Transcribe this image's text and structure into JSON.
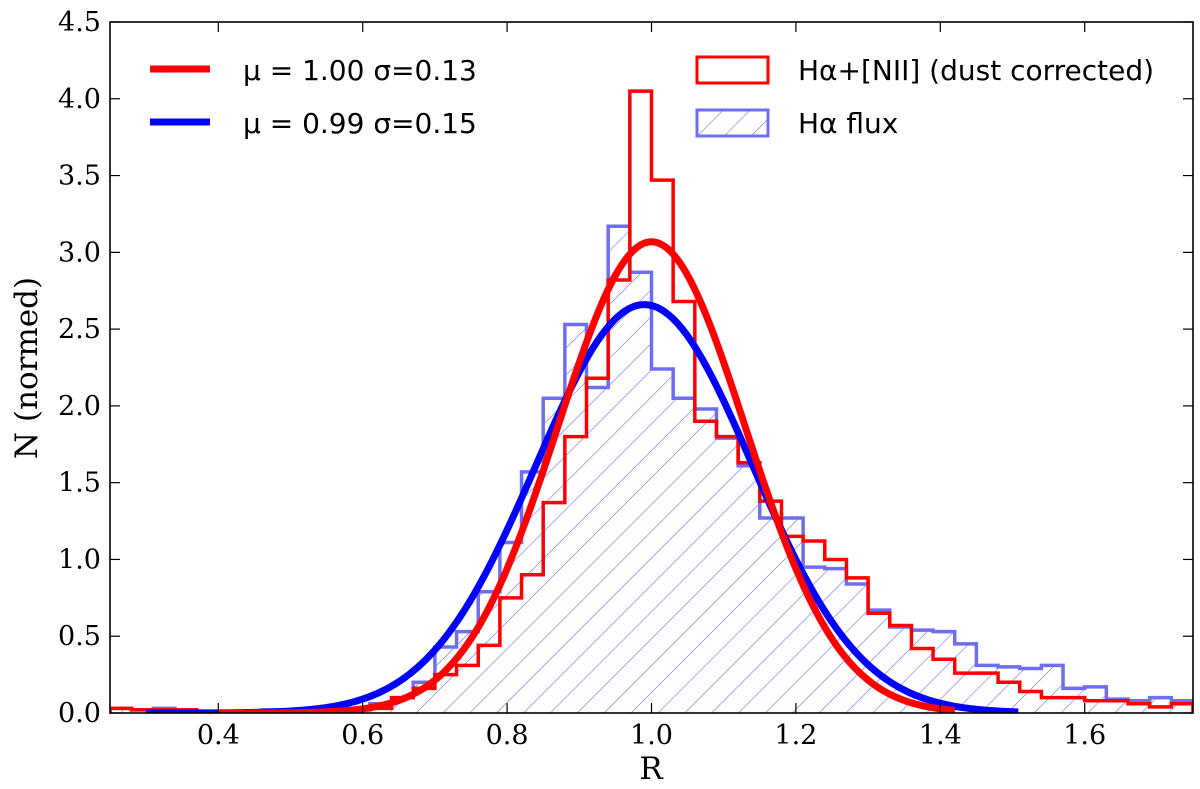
{
  "chart_data": {
    "type": "histogram",
    "xlabel": "R",
    "ylabel": "N (normed)",
    "xlim": [
      0.25,
      1.75
    ],
    "ylim": [
      0.0,
      4.5
    ],
    "xticks": [
      {
        "value": 0.4,
        "label": "0.4"
      },
      {
        "value": 0.6,
        "label": "0.6"
      },
      {
        "value": 0.8,
        "label": "0.8"
      },
      {
        "value": 1.0,
        "label": "1.0"
      },
      {
        "value": 1.2,
        "label": "1.2"
      },
      {
        "value": 1.4,
        "label": "1.4"
      },
      {
        "value": 1.6,
        "label": "1.6"
      }
    ],
    "yticks": [
      {
        "value": 0.0,
        "label": "0.0"
      },
      {
        "value": 0.5,
        "label": "0.5"
      },
      {
        "value": 1.0,
        "label": "1.0"
      },
      {
        "value": 1.5,
        "label": "1.5"
      },
      {
        "value": 2.0,
        "label": "2.0"
      },
      {
        "value": 2.5,
        "label": "2.5"
      },
      {
        "value": 3.0,
        "label": "3.0"
      },
      {
        "value": 3.5,
        "label": "3.5"
      },
      {
        "value": 4.0,
        "label": "4.0"
      },
      {
        "value": 4.5,
        "label": "4.5"
      }
    ],
    "bin_width": 0.03,
    "histograms": [
      {
        "name": "Hα+[NII] (dust corrected)",
        "color": "#ff0000",
        "style": "step",
        "bins": [
          [
            0.25,
            0.03
          ],
          [
            0.28,
            0.02
          ],
          [
            0.31,
            0.02
          ],
          [
            0.34,
            0.02
          ],
          [
            0.37,
            0.01
          ],
          [
            0.4,
            0.01
          ],
          [
            0.43,
            0.01
          ],
          [
            0.46,
            0.01
          ],
          [
            0.49,
            0.02
          ],
          [
            0.52,
            0.01
          ],
          [
            0.55,
            0.01
          ],
          [
            0.58,
            0.02
          ],
          [
            0.61,
            0.03
          ],
          [
            0.64,
            0.1
          ],
          [
            0.67,
            0.16
          ],
          [
            0.7,
            0.25
          ],
          [
            0.73,
            0.31
          ],
          [
            0.76,
            0.44
          ],
          [
            0.79,
            0.75
          ],
          [
            0.82,
            0.9
          ],
          [
            0.85,
            1.37
          ],
          [
            0.88,
            1.8
          ],
          [
            0.91,
            2.18
          ],
          [
            0.94,
            2.82
          ],
          [
            0.97,
            4.05
          ],
          [
            1.0,
            3.47
          ],
          [
            1.03,
            2.68
          ],
          [
            1.06,
            1.9
          ],
          [
            1.09,
            1.8
          ],
          [
            1.12,
            1.63
          ],
          [
            1.15,
            1.38
          ],
          [
            1.18,
            1.15
          ],
          [
            1.21,
            1.12
          ],
          [
            1.24,
            1.0
          ],
          [
            1.27,
            0.88
          ],
          [
            1.3,
            0.65
          ],
          [
            1.33,
            0.57
          ],
          [
            1.36,
            0.42
          ],
          [
            1.39,
            0.35
          ],
          [
            1.42,
            0.26
          ],
          [
            1.45,
            0.26
          ],
          [
            1.48,
            0.2
          ],
          [
            1.51,
            0.14
          ],
          [
            1.54,
            0.1
          ],
          [
            1.57,
            0.1
          ],
          [
            1.6,
            0.08
          ],
          [
            1.63,
            0.08
          ],
          [
            1.66,
            0.06
          ],
          [
            1.69,
            0.04
          ],
          [
            1.72,
            0.06
          ]
        ]
      },
      {
        "name": "Hα flux",
        "color": "#6e6ef0",
        "style": "step-hatched",
        "bins": [
          [
            0.25,
            0.03
          ],
          [
            0.28,
            0.02
          ],
          [
            0.31,
            0.03
          ],
          [
            0.34,
            0.02
          ],
          [
            0.37,
            0.01
          ],
          [
            0.4,
            0.01
          ],
          [
            0.43,
            0.01
          ],
          [
            0.46,
            0.02
          ],
          [
            0.49,
            0.01
          ],
          [
            0.52,
            0.02
          ],
          [
            0.55,
            0.02
          ],
          [
            0.58,
            0.03
          ],
          [
            0.61,
            0.06
          ],
          [
            0.64,
            0.1
          ],
          [
            0.67,
            0.2
          ],
          [
            0.7,
            0.43
          ],
          [
            0.73,
            0.53
          ],
          [
            0.76,
            0.79
          ],
          [
            0.79,
            1.11
          ],
          [
            0.82,
            1.57
          ],
          [
            0.85,
            2.05
          ],
          [
            0.88,
            2.53
          ],
          [
            0.91,
            2.12
          ],
          [
            0.94,
            3.17
          ],
          [
            0.97,
            2.87
          ],
          [
            1.0,
            2.24
          ],
          [
            1.03,
            2.05
          ],
          [
            1.06,
            1.98
          ],
          [
            1.09,
            1.79
          ],
          [
            1.12,
            1.61
          ],
          [
            1.15,
            1.27
          ],
          [
            1.18,
            1.27
          ],
          [
            1.21,
            0.95
          ],
          [
            1.24,
            0.94
          ],
          [
            1.27,
            0.84
          ],
          [
            1.3,
            0.67
          ],
          [
            1.33,
            0.56
          ],
          [
            1.36,
            0.54
          ],
          [
            1.39,
            0.53
          ],
          [
            1.42,
            0.45
          ],
          [
            1.45,
            0.31
          ],
          [
            1.48,
            0.3
          ],
          [
            1.51,
            0.29
          ],
          [
            1.54,
            0.31
          ],
          [
            1.57,
            0.16
          ],
          [
            1.6,
            0.17
          ],
          [
            1.63,
            0.09
          ],
          [
            1.66,
            0.08
          ],
          [
            1.69,
            0.1
          ],
          [
            1.72,
            0.08
          ]
        ]
      }
    ],
    "fits": [
      {
        "name": "μ = 1.00 σ=0.13",
        "mu": 1.0,
        "sigma": 0.13,
        "color": "#ff0000",
        "x_range": [
          0.4,
          1.42
        ]
      },
      {
        "name": "μ = 0.99 σ=0.15",
        "mu": 0.99,
        "sigma": 0.15,
        "color": "#0000ff",
        "x_range": [
          0.3,
          1.51
        ]
      }
    ],
    "legend_placement": "top",
    "grid": false
  }
}
